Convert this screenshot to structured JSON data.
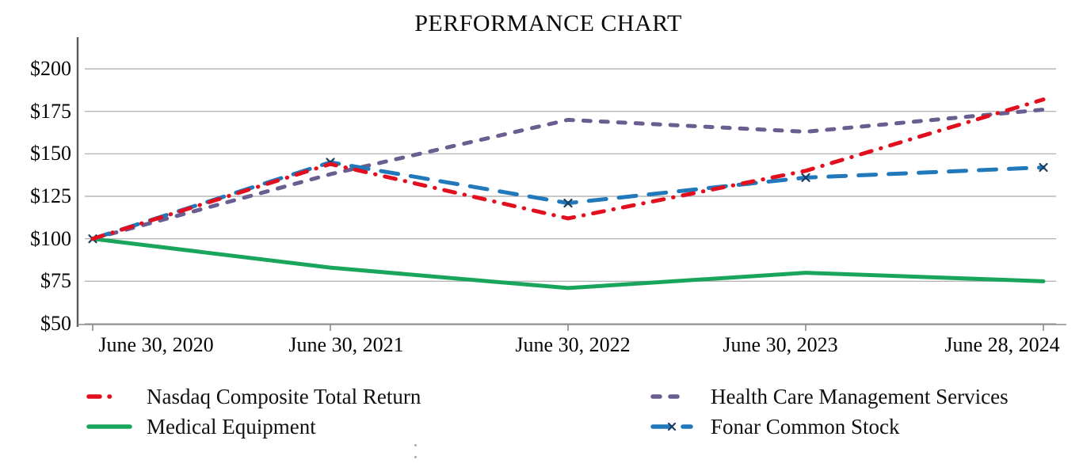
{
  "chart_data": {
    "type": "line",
    "title": "PERFORMANCE CHART",
    "categories": [
      "June 30, 2020",
      "June 30, 2021",
      "June 30, 2022",
      "June 30, 2023",
      "June 28, 2024"
    ],
    "y_tick_labels": [
      "$200",
      "$175",
      "$150",
      "$125",
      "$100",
      "$75",
      "$50"
    ],
    "ylim": [
      50,
      200
    ],
    "y_tick_step": 25,
    "grid": "horizontal",
    "legend_position": "bottom",
    "axis_color": "#595959",
    "x_axis_color": "#8a8a8a",
    "grid_color": "#a8a8a8",
    "series": [
      {
        "name": "Nasdaq Composite Total Return",
        "color": "#e2101f",
        "style": "dash-dot",
        "values": [
          100,
          144,
          112,
          140,
          182
        ]
      },
      {
        "name": "Health Care Management Services",
        "color": "#6a5d8f",
        "style": "dashed",
        "values": [
          100,
          138,
          170,
          163,
          176
        ]
      },
      {
        "name": "Medical Equipment",
        "color": "#19a65c",
        "style": "solid",
        "values": [
          100,
          83,
          71,
          80,
          75
        ]
      },
      {
        "name": "Fonar Common Stock",
        "color": "#2178ba",
        "style": "long-dash",
        "marker": "x",
        "marker_color": "#1b3f63",
        "values": [
          100,
          145,
          121,
          136,
          142
        ]
      }
    ]
  }
}
